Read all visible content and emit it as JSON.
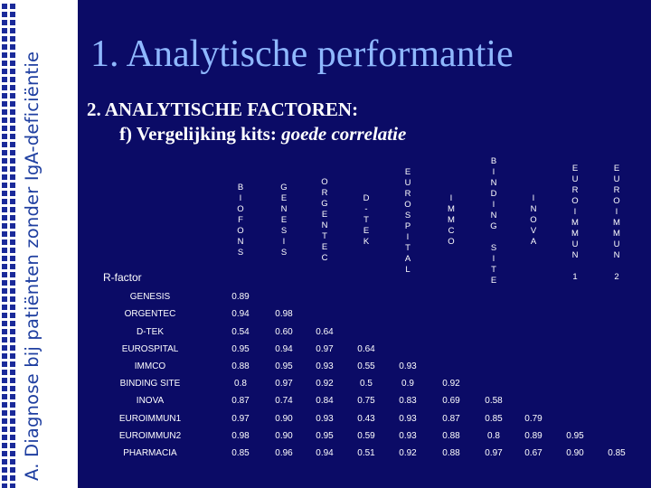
{
  "side_title": "A. Diagnose bij patiënten zonder IgA-deficiëntie",
  "title": "1. Analytische performantie",
  "subtitle_line1": "2. ANALYTISCHE FACTOREN:",
  "subtitle_line2_plain": "f) Vergelijking kits:",
  "subtitle_line2_em": "goede correlatie",
  "rfactor_label": "R-factor",
  "columns": [
    {
      "letters": [
        "B",
        "I",
        "O",
        "F",
        "O",
        "N",
        "S"
      ]
    },
    {
      "letters": [
        "G",
        "E",
        "N",
        "E",
        "S",
        "I",
        "S"
      ]
    },
    {
      "letters": [
        "O",
        "R",
        "G",
        "E",
        "N",
        "T",
        "E",
        "C"
      ]
    },
    {
      "letters": [
        "D",
        "-",
        "T",
        "E",
        "K"
      ]
    },
    {
      "letters": [
        "E",
        "U",
        "R",
        "O",
        "S",
        "P",
        "I",
        "T",
        "A",
        "L"
      ]
    },
    {
      "letters": [
        "I",
        "M",
        "M",
        "C",
        "O"
      ]
    },
    {
      "letters": [
        "B",
        "I",
        "N",
        "D",
        "I",
        "N",
        "G",
        "",
        "S",
        "I",
        "T",
        "E"
      ]
    },
    {
      "letters": [
        "I",
        "N",
        "O",
        "V",
        "A"
      ]
    },
    {
      "letters": [
        "E",
        "U",
        "R",
        "O",
        "I",
        "M",
        "M",
        "U",
        "N",
        "",
        "1"
      ]
    },
    {
      "letters": [
        "E",
        "U",
        "R",
        "O",
        "I",
        "M",
        "M",
        "U",
        "N",
        "",
        "2"
      ]
    }
  ],
  "rows": [
    {
      "name": "GENESIS",
      "values": [
        "0.89"
      ]
    },
    {
      "name": "ORGENTEC",
      "values": [
        "0.94",
        "0.98"
      ]
    },
    {
      "name": "D-TEK",
      "values": [
        "0.54",
        "0.60",
        "0.64"
      ]
    },
    {
      "name": "EUROSPITAL",
      "values": [
        "0.95",
        "0.94",
        "0.97",
        "0.64"
      ]
    },
    {
      "name": "IMMCO",
      "values": [
        "0.88",
        "0.95",
        "0.93",
        "0.55",
        "0.93"
      ]
    },
    {
      "name": "BINDING SITE",
      "values": [
        "0.8",
        "0.97",
        "0.92",
        "0.5",
        "0.9",
        "0.92"
      ]
    },
    {
      "name": "INOVA",
      "values": [
        "0.87",
        "0.74",
        "0.84",
        "0.75",
        "0.83",
        "0.69",
        "0.58"
      ]
    },
    {
      "name": "EUROIMMUN1",
      "values": [
        "0.97",
        "0.90",
        "0.93",
        "0.43",
        "0.93",
        "0.87",
        "0.85",
        "0.79"
      ]
    },
    {
      "name": "EUROIMMUN2",
      "values": [
        "0.98",
        "0.90",
        "0.95",
        "0.59",
        "0.93",
        "0.88",
        "0.8",
        "0.89",
        "0.95"
      ]
    },
    {
      "name": "PHARMACIA",
      "values": [
        "0.85",
        "0.96",
        "0.94",
        "0.51",
        "0.92",
        "0.88",
        "0.97",
        "0.67",
        "0.90",
        "0.85"
      ]
    }
  ],
  "colors": {
    "background": "#0b0b66",
    "title": "#8fb8ff",
    "side_title": "#1e3ea0"
  }
}
